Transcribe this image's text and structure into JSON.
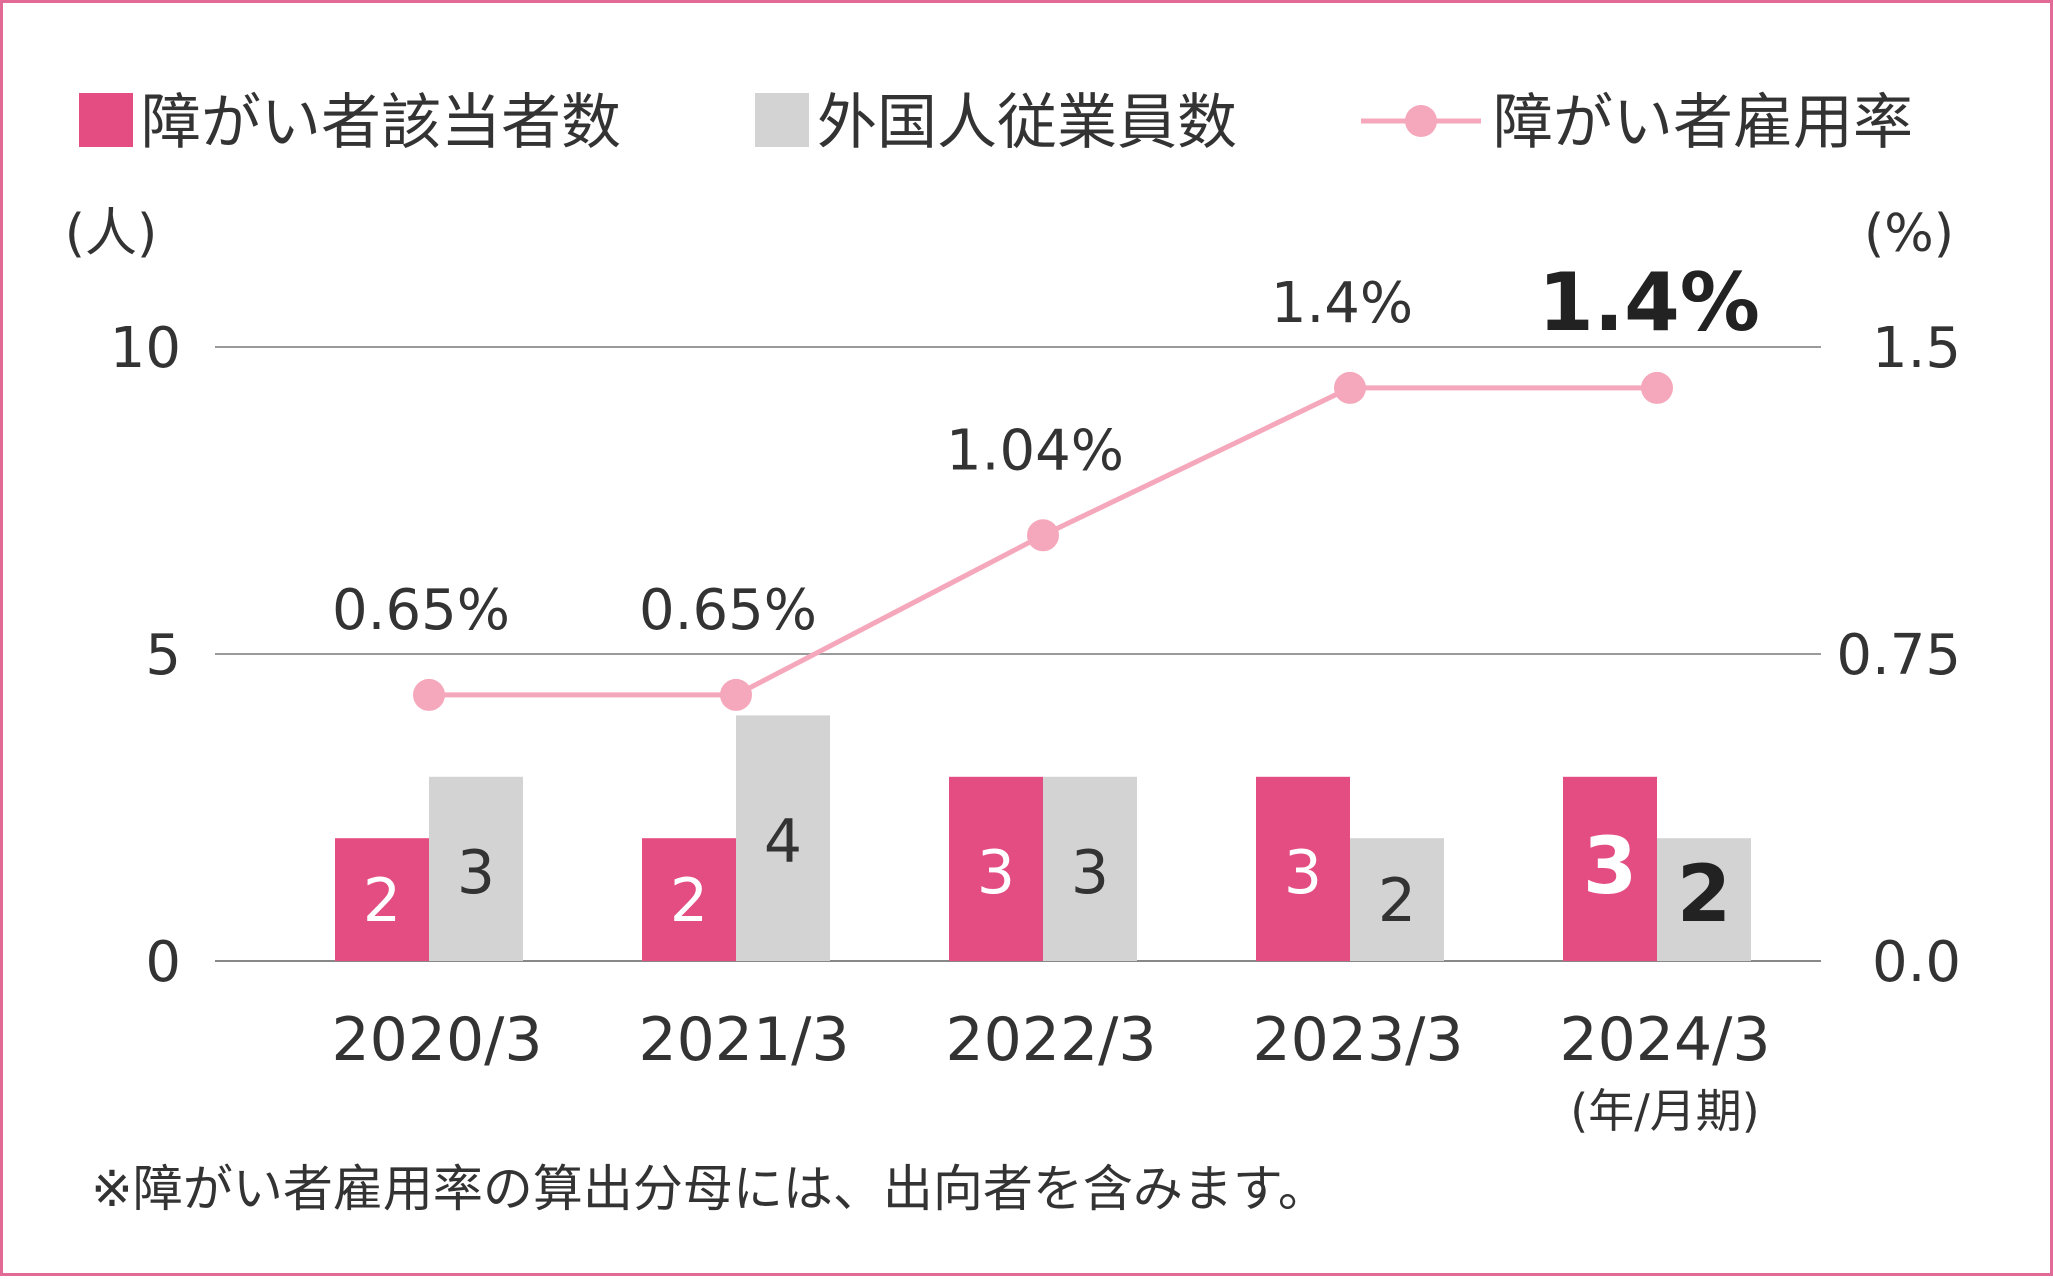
{
  "chart_data": {
    "type": "bar",
    "categories": [
      "2020/3",
      "2021/3",
      "2022/3",
      "2023/3",
      "2024/3"
    ],
    "category_sublabel": "(年/月期)",
    "series": [
      {
        "name": "障がい者該当者数",
        "kind": "bar",
        "axis": "left",
        "color": "#e44d82",
        "values": [
          2,
          2,
          3,
          3,
          3
        ],
        "labels": [
          "2",
          "2",
          "3",
          "3",
          "3"
        ]
      },
      {
        "name": "外国人従業員数",
        "kind": "bar",
        "axis": "left",
        "color": "#d3d3d3",
        "values": [
          3,
          4,
          3,
          2,
          2
        ],
        "labels": [
          "3",
          "4",
          "3",
          "2",
          "2"
        ]
      },
      {
        "name": "障がい者雇用率",
        "kind": "line",
        "axis": "right",
        "color": "#f5a8bb",
        "values": [
          0.65,
          0.65,
          1.04,
          1.4,
          1.4
        ],
        "labels": [
          "0.65%",
          "0.65%",
          "1.04%",
          "1.4%",
          "1.4%"
        ]
      }
    ],
    "y_left": {
      "unit": "(人)",
      "range": [
        0,
        10
      ],
      "ticks": [
        "0",
        "5",
        "10"
      ]
    },
    "y_right": {
      "unit": "(%)",
      "range": [
        0,
        1.5
      ],
      "ticks": [
        "0.0",
        "0.75",
        "1.5"
      ]
    },
    "grid": true,
    "legend_position": "top",
    "highlight_last": true
  },
  "note": "※障がい者雇用率の算出分母には、出向者を含みます。"
}
